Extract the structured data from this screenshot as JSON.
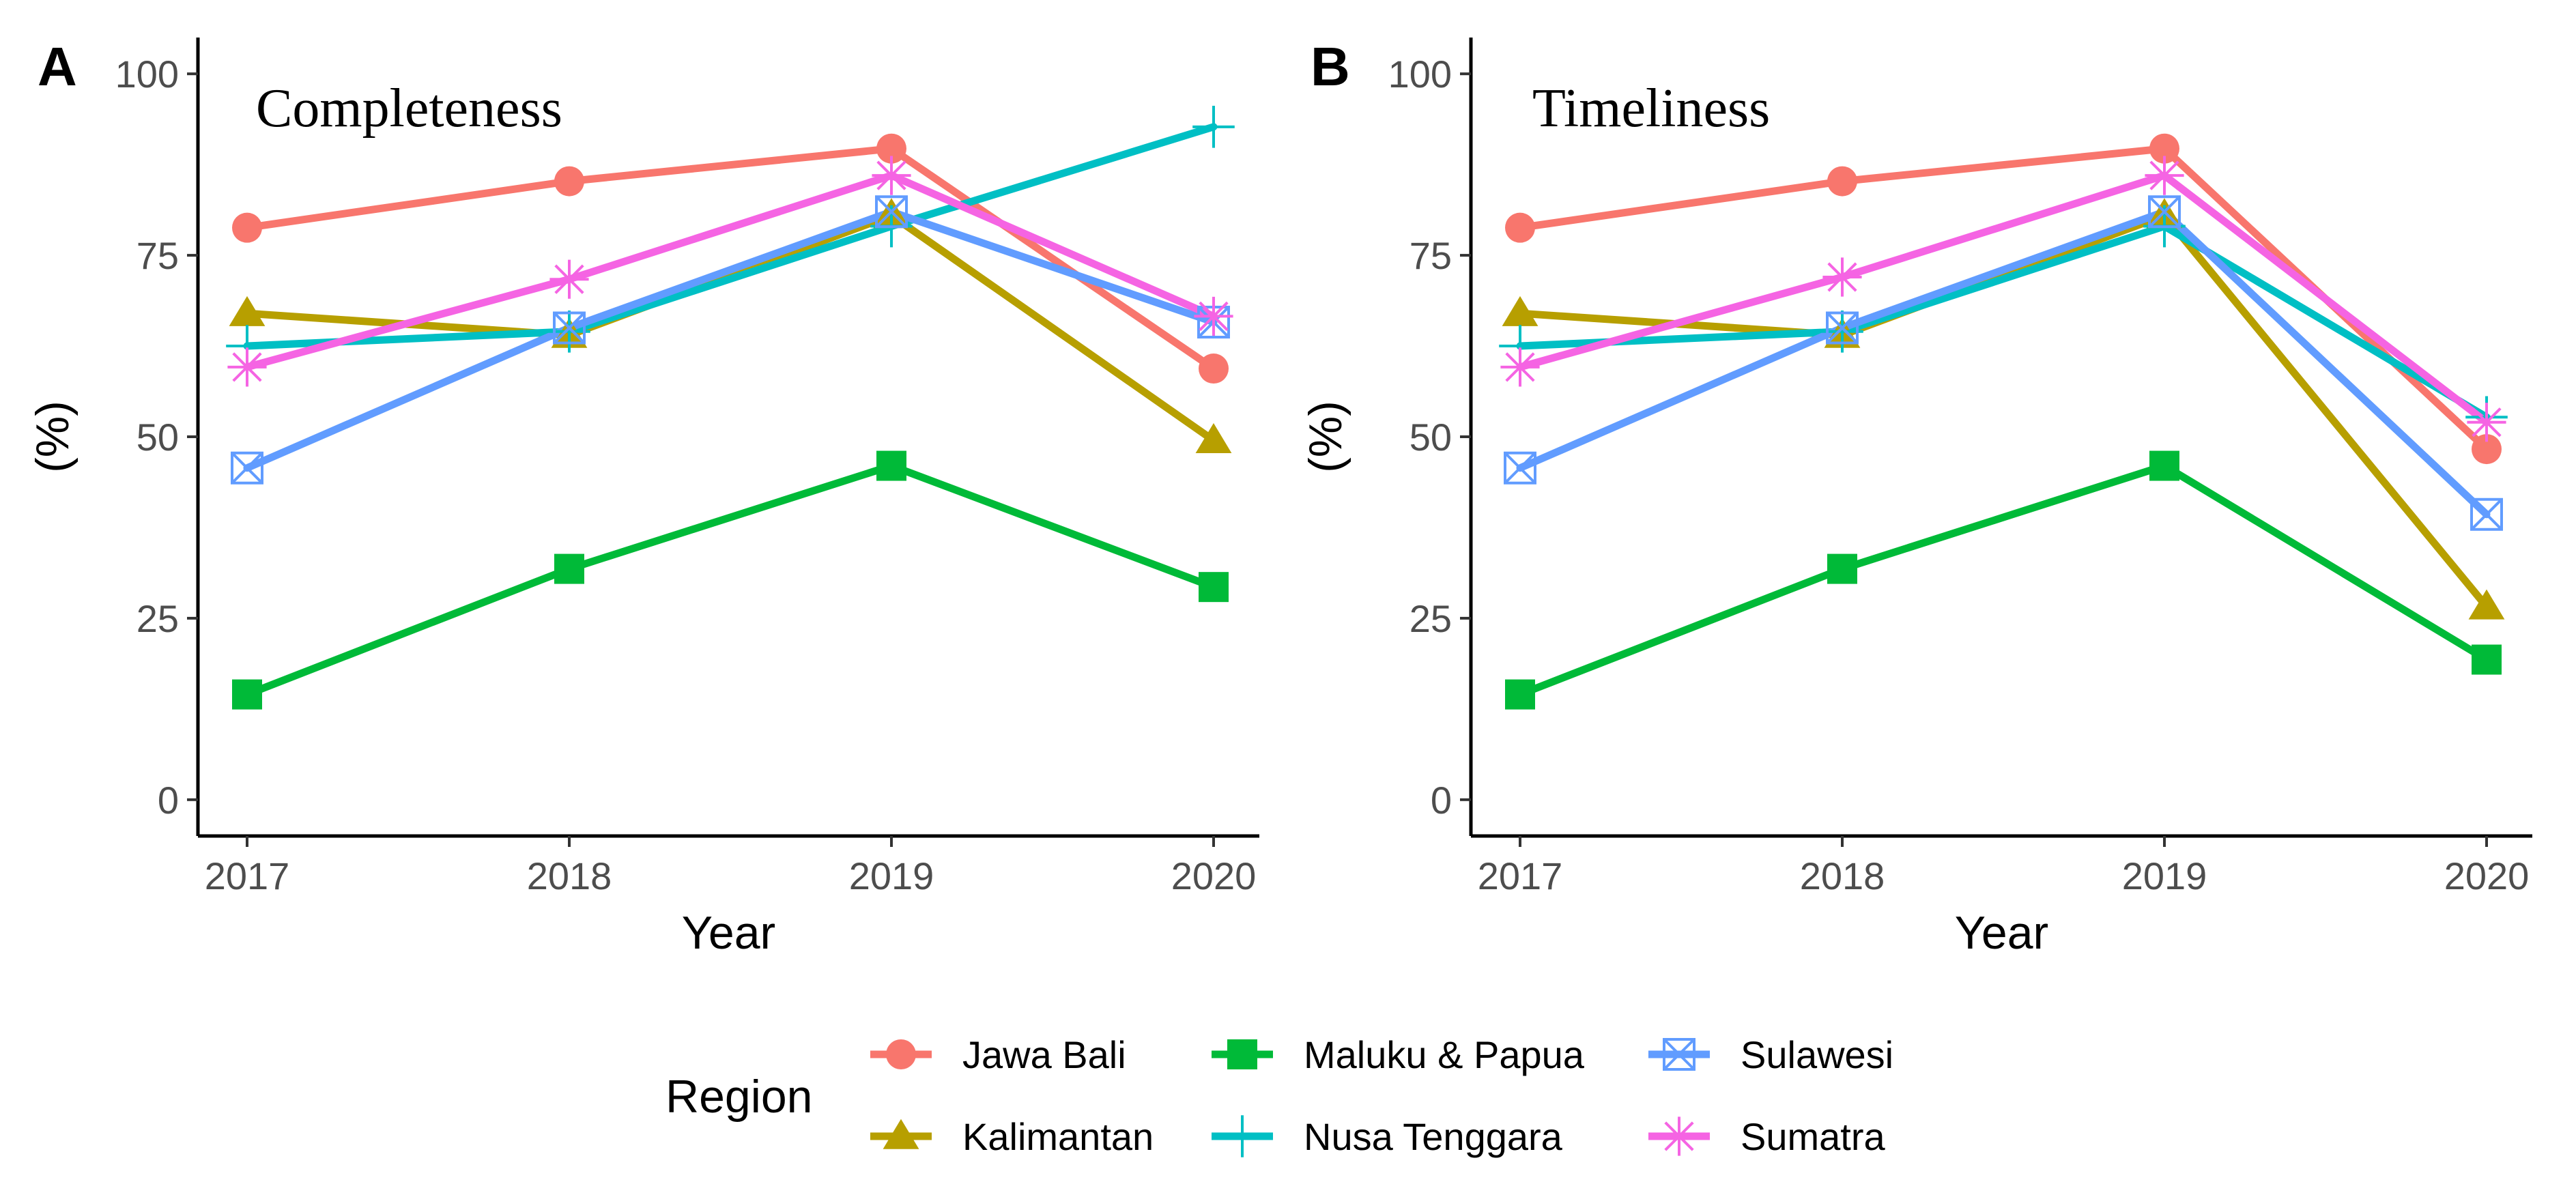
{
  "chart_data": [
    {
      "panel": "A",
      "type": "line",
      "title": "Completeness",
      "xlabel": "Year",
      "ylabel": "(%)",
      "x": [
        "2017",
        "2018",
        "2019",
        "2020"
      ],
      "ylim": [
        -5,
        105
      ],
      "yticks": [
        0,
        25,
        50,
        75,
        100
      ],
      "grid": false,
      "series": [
        {
          "name": "Jawa Bali",
          "values": [
            78.8,
            85.2,
            89.7,
            59.4
          ]
        },
        {
          "name": "Kalimantan",
          "values": [
            67.0,
            64.0,
            80.5,
            49.5
          ]
        },
        {
          "name": "Maluku & Papua",
          "values": [
            14.5,
            31.8,
            46.0,
            29.3
          ]
        },
        {
          "name": "Nusa Tenggara",
          "values": [
            62.5,
            64.5,
            79.0,
            92.7
          ]
        },
        {
          "name": "Sulawesi",
          "values": [
            45.7,
            65.0,
            81.0,
            65.8
          ]
        },
        {
          "name": "Sumatra",
          "values": [
            59.6,
            71.7,
            86.0,
            66.6
          ]
        }
      ]
    },
    {
      "panel": "B",
      "type": "line",
      "title": "Timeliness",
      "xlabel": "Year",
      "ylabel": "(%)",
      "x": [
        "2017",
        "2018",
        "2019",
        "2020"
      ],
      "ylim": [
        -5,
        105
      ],
      "yticks": [
        0,
        25,
        50,
        75,
        100
      ],
      "grid": false,
      "series": [
        {
          "name": "Jawa Bali",
          "values": [
            78.8,
            85.2,
            89.7,
            48.3
          ]
        },
        {
          "name": "Kalimantan",
          "values": [
            67.0,
            64.0,
            80.5,
            26.6
          ]
        },
        {
          "name": "Maluku & Papua",
          "values": [
            14.5,
            31.8,
            46.0,
            19.3
          ]
        },
        {
          "name": "Nusa Tenggara",
          "values": [
            62.5,
            64.5,
            79.0,
            52.7
          ]
        },
        {
          "name": "Sulawesi",
          "values": [
            45.7,
            65.0,
            81.0,
            39.3
          ]
        },
        {
          "name": "Sumatra",
          "values": [
            59.6,
            72.0,
            86.0,
            52.0
          ]
        }
      ]
    }
  ],
  "legend": {
    "title": "Region",
    "position": "bottom",
    "items": [
      {
        "name": "Jawa Bali",
        "color": "#F8766D",
        "shape": "circle"
      },
      {
        "name": "Kalimantan",
        "color": "#B79F00",
        "shape": "triangle"
      },
      {
        "name": "Maluku & Papua",
        "color": "#00BA38",
        "shape": "square"
      },
      {
        "name": "Nusa Tenggara",
        "color": "#00BFC4",
        "shape": "plus"
      },
      {
        "name": "Sulawesi",
        "color": "#619CFF",
        "shape": "square-cross"
      },
      {
        "name": "Sumatra",
        "color": "#F564E3",
        "shape": "asterisk"
      }
    ]
  }
}
